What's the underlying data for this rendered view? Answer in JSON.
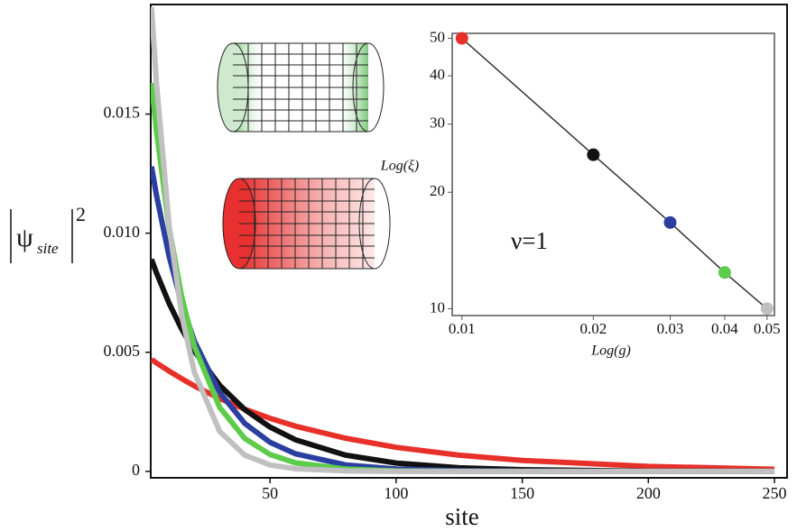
{
  "chart_data": [
    {
      "type": "line",
      "x_label": "site",
      "y_label": {
        "symbol": "ψ",
        "subscript": "site",
        "superscript": "2"
      },
      "x": [
        3,
        5,
        10,
        15,
        20,
        30,
        40,
        50,
        60,
        80,
        100,
        125,
        150,
        200,
        250
      ],
      "series": [
        {
          "color": "#e8302a",
          "values": [
            0.0047,
            0.00455,
            0.00421,
            0.00389,
            0.00359,
            0.00306,
            0.00261,
            0.00223,
            0.0019,
            0.00139,
            0.00101,
            0.00068,
            0.00046,
            0.00021,
            9e-05
          ]
        },
        {
          "color": "#111111",
          "values": [
            0.0089,
            0.00833,
            0.00705,
            0.00597,
            0.00505,
            0.00362,
            0.00259,
            0.00186,
            0.00133,
            0.00068,
            0.00035,
            0.00015,
            7e-05,
            1e-05,
            0
          ]
        },
        {
          "color": "#2b3fa0",
          "values": [
            0.0128,
            0.01158,
            0.00902,
            0.00702,
            0.00547,
            0.00332,
            0.00201,
            0.00122,
            0.00074,
            0.00027,
            0.0001,
            3e-05,
            1e-05,
            0,
            0
          ]
        },
        {
          "color": "#5ccc4a",
          "values": [
            0.0163,
            0.01427,
            0.01022,
            0.00732,
            0.00525,
            0.00269,
            0.00138,
            0.00071,
            0.00036,
            0.0001,
            2e-05,
            0,
            0,
            0,
            0
          ]
        },
        {
          "color": "#c0c0c0",
          "values": [
            0.0195,
            0.01626,
            0.01032,
            0.00655,
            0.00416,
            0.00168,
            0.00068,
            0.00027,
            0.00011,
            2e-05,
            0,
            0,
            0,
            0,
            0
          ]
        }
      ],
      "xlim": [
        2.7,
        255
      ],
      "ylim": [
        -0.00027,
        0.0196
      ],
      "xticks": [
        50,
        100,
        150,
        200,
        250
      ],
      "yticks": [
        0,
        0.005,
        {
          "value": 0.01,
          "label": "0.010"
        },
        0.015
      ]
    },
    {
      "type": "scatter",
      "x_label": "Log(g)",
      "y_label": "Log(ξ)",
      "annotation": "ν=1",
      "xscale": "log",
      "yscale": "log",
      "fit_line": true,
      "x": [
        0.01,
        0.02,
        0.03,
        0.04,
        0.05
      ],
      "values": [
        50,
        25,
        16.7,
        12.4,
        10
      ],
      "colors": [
        "#e8302a",
        "#111111",
        "#2b3fa0",
        "#5ccc4a",
        "#c0c0c0"
      ],
      "xlim": [
        0.0095,
        0.052
      ],
      "ylim": [
        9.6,
        51.5
      ],
      "xticks": [
        0.01,
        0.02,
        0.03,
        0.04,
        0.05
      ],
      "yticks": [
        10,
        20,
        30,
        40,
        50
      ]
    }
  ]
}
